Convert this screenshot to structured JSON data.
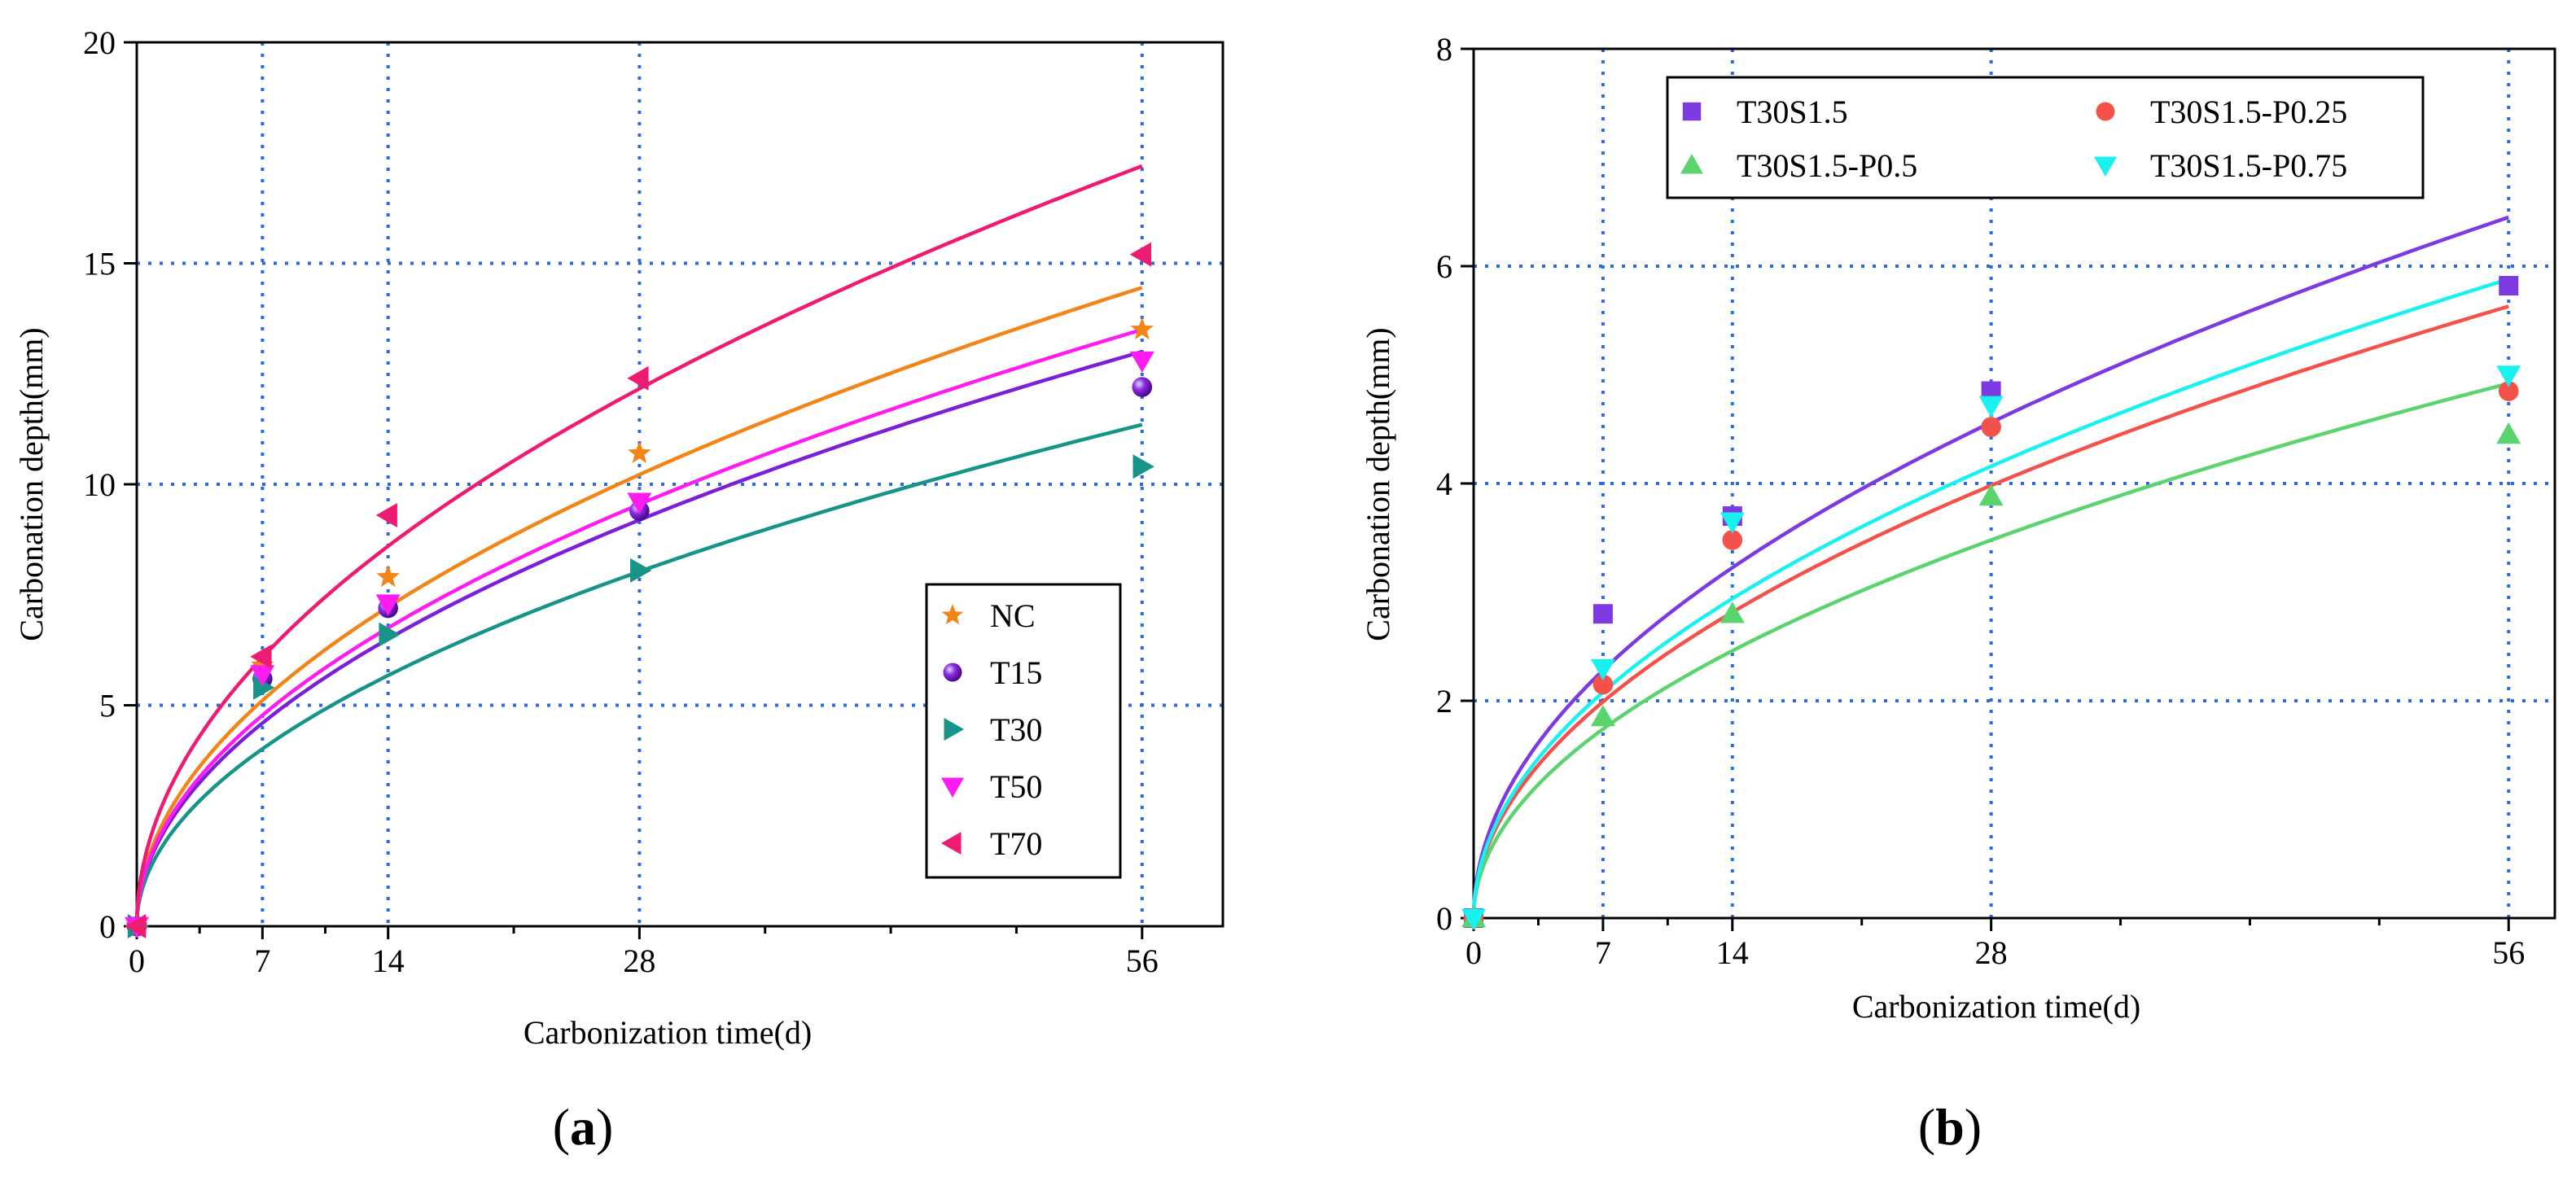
{
  "figure": {
    "panel_labels": [
      {
        "open": "(",
        "letter": "a",
        "close": ")"
      },
      {
        "open": "(",
        "letter": "b",
        "close": ")"
      }
    ]
  },
  "chart_data": [
    {
      "type": "scatter",
      "panel": "a",
      "xlabel": "Carbonization time(d)",
      "ylabel": "Carbonation depth(mm)",
      "xlim": [
        0,
        60.5
      ],
      "ylim": [
        0,
        20
      ],
      "xticks": [
        0,
        7,
        14,
        28,
        56
      ],
      "xticks_minor": [
        3.5,
        10.5,
        21,
        35,
        42,
        49
      ],
      "yticks": [
        0,
        5,
        10,
        15,
        20
      ],
      "vgrid": [
        7,
        14,
        28,
        56
      ],
      "hgrid": [
        5,
        10,
        15
      ],
      "grid_style": "dotted blue",
      "legend_position": "lower-right",
      "fit": "sqrt (y = k·√t)",
      "series": [
        {
          "name": "NC",
          "marker": "star",
          "color": "#F28518",
          "x": [
            0,
            7,
            14,
            28,
            56
          ],
          "y": [
            0,
            5.9,
            7.9,
            10.7,
            13.5
          ],
          "fit_end": 14.45
        },
        {
          "name": "T15",
          "marker": "sphere",
          "color": "#7B1FD8",
          "x": [
            0,
            7,
            14,
            28,
            56
          ],
          "y": [
            0,
            5.6,
            7.2,
            9.4,
            12.2
          ],
          "fit_end": 13.0
        },
        {
          "name": "T30",
          "marker": "triangle-right",
          "color": "#169488",
          "x": [
            0,
            7,
            14,
            28,
            56
          ],
          "y": [
            0,
            5.4,
            6.6,
            8.05,
            10.4
          ],
          "fit_end": 11.35
        },
        {
          "name": "T50",
          "marker": "triangle-down",
          "color": "#FF1CF0",
          "x": [
            0,
            7,
            14,
            28,
            56
          ],
          "y": [
            0,
            5.7,
            7.3,
            9.6,
            12.8
          ],
          "fit_end": 13.5
        },
        {
          "name": "T70",
          "marker": "triangle-left",
          "color": "#EE1B73",
          "x": [
            0,
            7,
            14,
            28,
            56
          ],
          "y": [
            0,
            6.1,
            9.3,
            12.4,
            15.2
          ],
          "fit_end": 17.2
        }
      ]
    },
    {
      "type": "scatter",
      "panel": "b",
      "xlabel": "Carbonization time(d)",
      "ylabel": "Carbonation depth(mm)",
      "xlim": [
        0,
        58.5
      ],
      "ylim": [
        0,
        8
      ],
      "xticks": [
        0,
        7,
        14,
        28,
        56
      ],
      "xticks_minor": [
        3.5,
        10.5,
        21,
        35,
        42,
        49
      ],
      "yticks": [
        0,
        2,
        4,
        6,
        8
      ],
      "vgrid": [
        7,
        14,
        28,
        56
      ],
      "hgrid": [
        2,
        4,
        6
      ],
      "grid_style": "dotted blue",
      "legend_position": "top",
      "fit": "sqrt (y = k·√t)",
      "series": [
        {
          "name": "T30S1.5",
          "marker": "square",
          "color": "#7C3AE0",
          "x": [
            0,
            7,
            14,
            28,
            56
          ],
          "y": [
            0,
            2.8,
            3.7,
            4.85,
            5.82
          ],
          "fit_end": 6.45
        },
        {
          "name": "T30S1.5-P0.25",
          "marker": "circle",
          "color": "#F2524A",
          "x": [
            0,
            7,
            14,
            28,
            56
          ],
          "y": [
            0,
            2.15,
            3.48,
            4.52,
            4.85
          ],
          "fit_end": 5.63
        },
        {
          "name": "T30S1.5-P0.5",
          "marker": "triangle-up",
          "color": "#5BD36E",
          "x": [
            0,
            7,
            14,
            28,
            56
          ],
          "y": [
            0,
            1.85,
            2.8,
            3.88,
            4.45
          ],
          "fit_end": 4.92
        },
        {
          "name": "T30S1.5-P0.75",
          "marker": "triangle-down",
          "color": "#19F0F0",
          "x": [
            0,
            7,
            14,
            28,
            56
          ],
          "y": [
            0,
            2.3,
            3.65,
            4.72,
            5.0
          ],
          "fit_end": 5.88
        }
      ]
    }
  ]
}
